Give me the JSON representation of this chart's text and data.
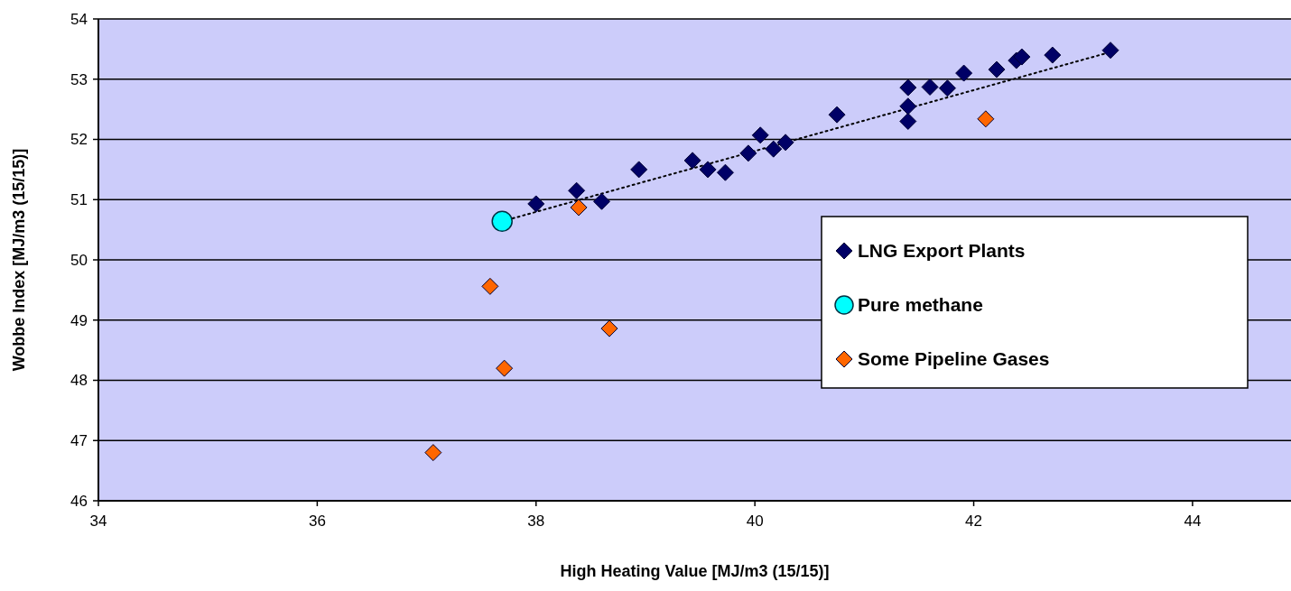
{
  "chart_data": {
    "type": "scatter",
    "xlabel": "High Heating Value [MJ/m3 (15/15)]",
    "ylabel": "Wobbe Index [MJ/m3 (15/15)]",
    "xlim": [
      34,
      44.9
    ],
    "xticks": [
      34,
      36,
      38,
      40,
      42,
      44
    ],
    "ylim": [
      46,
      54
    ],
    "yticks": [
      46,
      47,
      48,
      49,
      50,
      51,
      52,
      53,
      54
    ],
    "grid": "y",
    "legend": "right",
    "series": [
      {
        "name": "LNG Export Plants",
        "color": "#000066",
        "marker": "diamond",
        "x": [
          38.0,
          38.37,
          38.6,
          38.94,
          39.43,
          39.57,
          39.73,
          39.94,
          40.05,
          40.17,
          40.28,
          40.75,
          41.4,
          41.4,
          41.4,
          41.6,
          41.76,
          41.91,
          42.21,
          42.39,
          42.44,
          42.72,
          43.25
        ],
        "values": [
          50.93,
          51.15,
          50.97,
          51.5,
          51.65,
          51.5,
          51.45,
          51.77,
          52.07,
          51.84,
          51.95,
          52.41,
          52.3,
          52.55,
          52.86,
          52.87,
          52.85,
          53.1,
          53.16,
          53.31,
          53.37,
          53.4,
          53.48
        ]
      },
      {
        "name": "Pure methane",
        "color": "#00ffff",
        "marker": "circle",
        "x": [
          37.69
        ],
        "values": [
          50.64
        ]
      },
      {
        "name": "Some Pipeline Gases",
        "color": "#ff6600",
        "marker": "diamond",
        "x": [
          38.39,
          42.11,
          37.58,
          38.67,
          37.71,
          37.06
        ],
        "values": [
          50.87,
          52.34,
          49.56,
          48.86,
          48.2,
          46.8
        ]
      },
      {
        "type": "line",
        "color": "#000000",
        "line_style": "dotted",
        "marker": "none",
        "x": [
          37.69,
          43.25
        ],
        "values": [
          50.64,
          53.45
        ]
      }
    ]
  }
}
